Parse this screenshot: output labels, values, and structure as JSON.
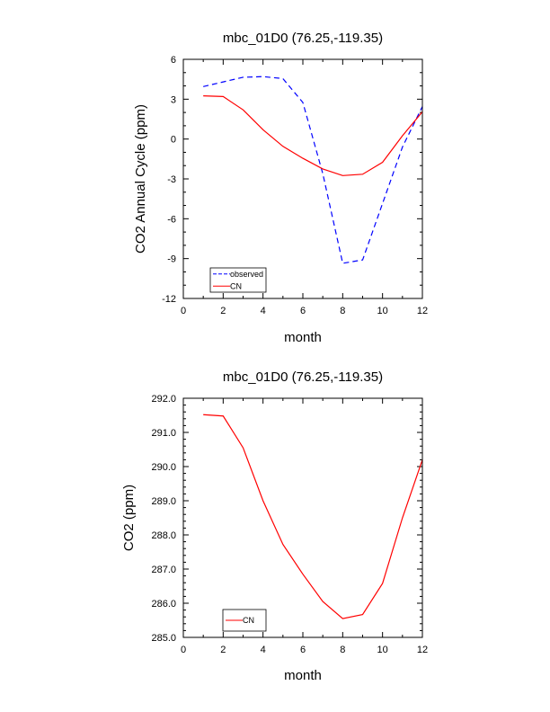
{
  "chart_data": [
    {
      "type": "line",
      "title": "mbc_01D0 (76.25,-119.35)",
      "xlabel": "month",
      "ylabel": "CO2 Annual Cycle (ppm)",
      "xlim": [
        0,
        12
      ],
      "ylim": [
        -12,
        6
      ],
      "x_ticks": [
        0,
        2,
        4,
        6,
        8,
        10,
        12
      ],
      "x_tick_labels": [
        "0",
        "2",
        "4",
        "6",
        "8",
        "10",
        "12"
      ],
      "y_ticks": [
        -12,
        -9,
        -6,
        -3,
        0,
        3,
        6
      ],
      "y_tick_labels": [
        "-12",
        "-9",
        "-6",
        "-3",
        "0",
        "3",
        "6"
      ],
      "x": [
        1,
        2,
        3,
        4,
        5,
        6,
        7,
        8,
        9,
        10,
        11,
        12
      ],
      "series": [
        {
          "name": "observed",
          "color": "#0000ff",
          "dash": "dashed",
          "values": [
            3.95,
            4.3,
            4.65,
            4.7,
            4.55,
            2.75,
            -2.6,
            -9.35,
            -9.1,
            -4.85,
            -0.6,
            2.45
          ]
        },
        {
          "name": "CN",
          "color": "#ff0000",
          "dash": "solid",
          "values": [
            3.25,
            3.2,
            2.2,
            0.7,
            -0.55,
            -1.45,
            -2.25,
            -2.75,
            -2.65,
            -1.75,
            0.25,
            2.05
          ]
        }
      ],
      "legend": {
        "position": "bottom-left",
        "labels": [
          "observed",
          "CN"
        ]
      },
      "grid": false
    },
    {
      "type": "line",
      "title": "mbc_01D0 (76.25,-119.35)",
      "xlabel": "month",
      "ylabel": "CO2 (ppm)",
      "xlim": [
        0,
        12
      ],
      "ylim": [
        285,
        292
      ],
      "x_ticks": [
        0,
        2,
        4,
        6,
        8,
        10,
        12
      ],
      "x_tick_labels": [
        "0",
        "2",
        "4",
        "6",
        "8",
        "10",
        "12"
      ],
      "y_ticks": [
        285,
        286,
        287,
        288,
        289,
        290,
        291,
        292
      ],
      "y_tick_labels": [
        "285.0",
        "286.0",
        "287.0",
        "288.0",
        "289.0",
        "290.0",
        "291.0",
        "292.0"
      ],
      "x": [
        1,
        2,
        3,
        4,
        5,
        6,
        7,
        8,
        9,
        10,
        11,
        12
      ],
      "series": [
        {
          "name": "CN",
          "color": "#ff0000",
          "dash": "solid",
          "values": [
            291.52,
            291.48,
            290.55,
            289.0,
            287.72,
            286.85,
            286.05,
            285.55,
            285.67,
            286.58,
            288.5,
            290.2
          ]
        }
      ],
      "legend": {
        "position": "bottom-left",
        "labels": [
          "CN"
        ]
      },
      "grid": false
    }
  ]
}
